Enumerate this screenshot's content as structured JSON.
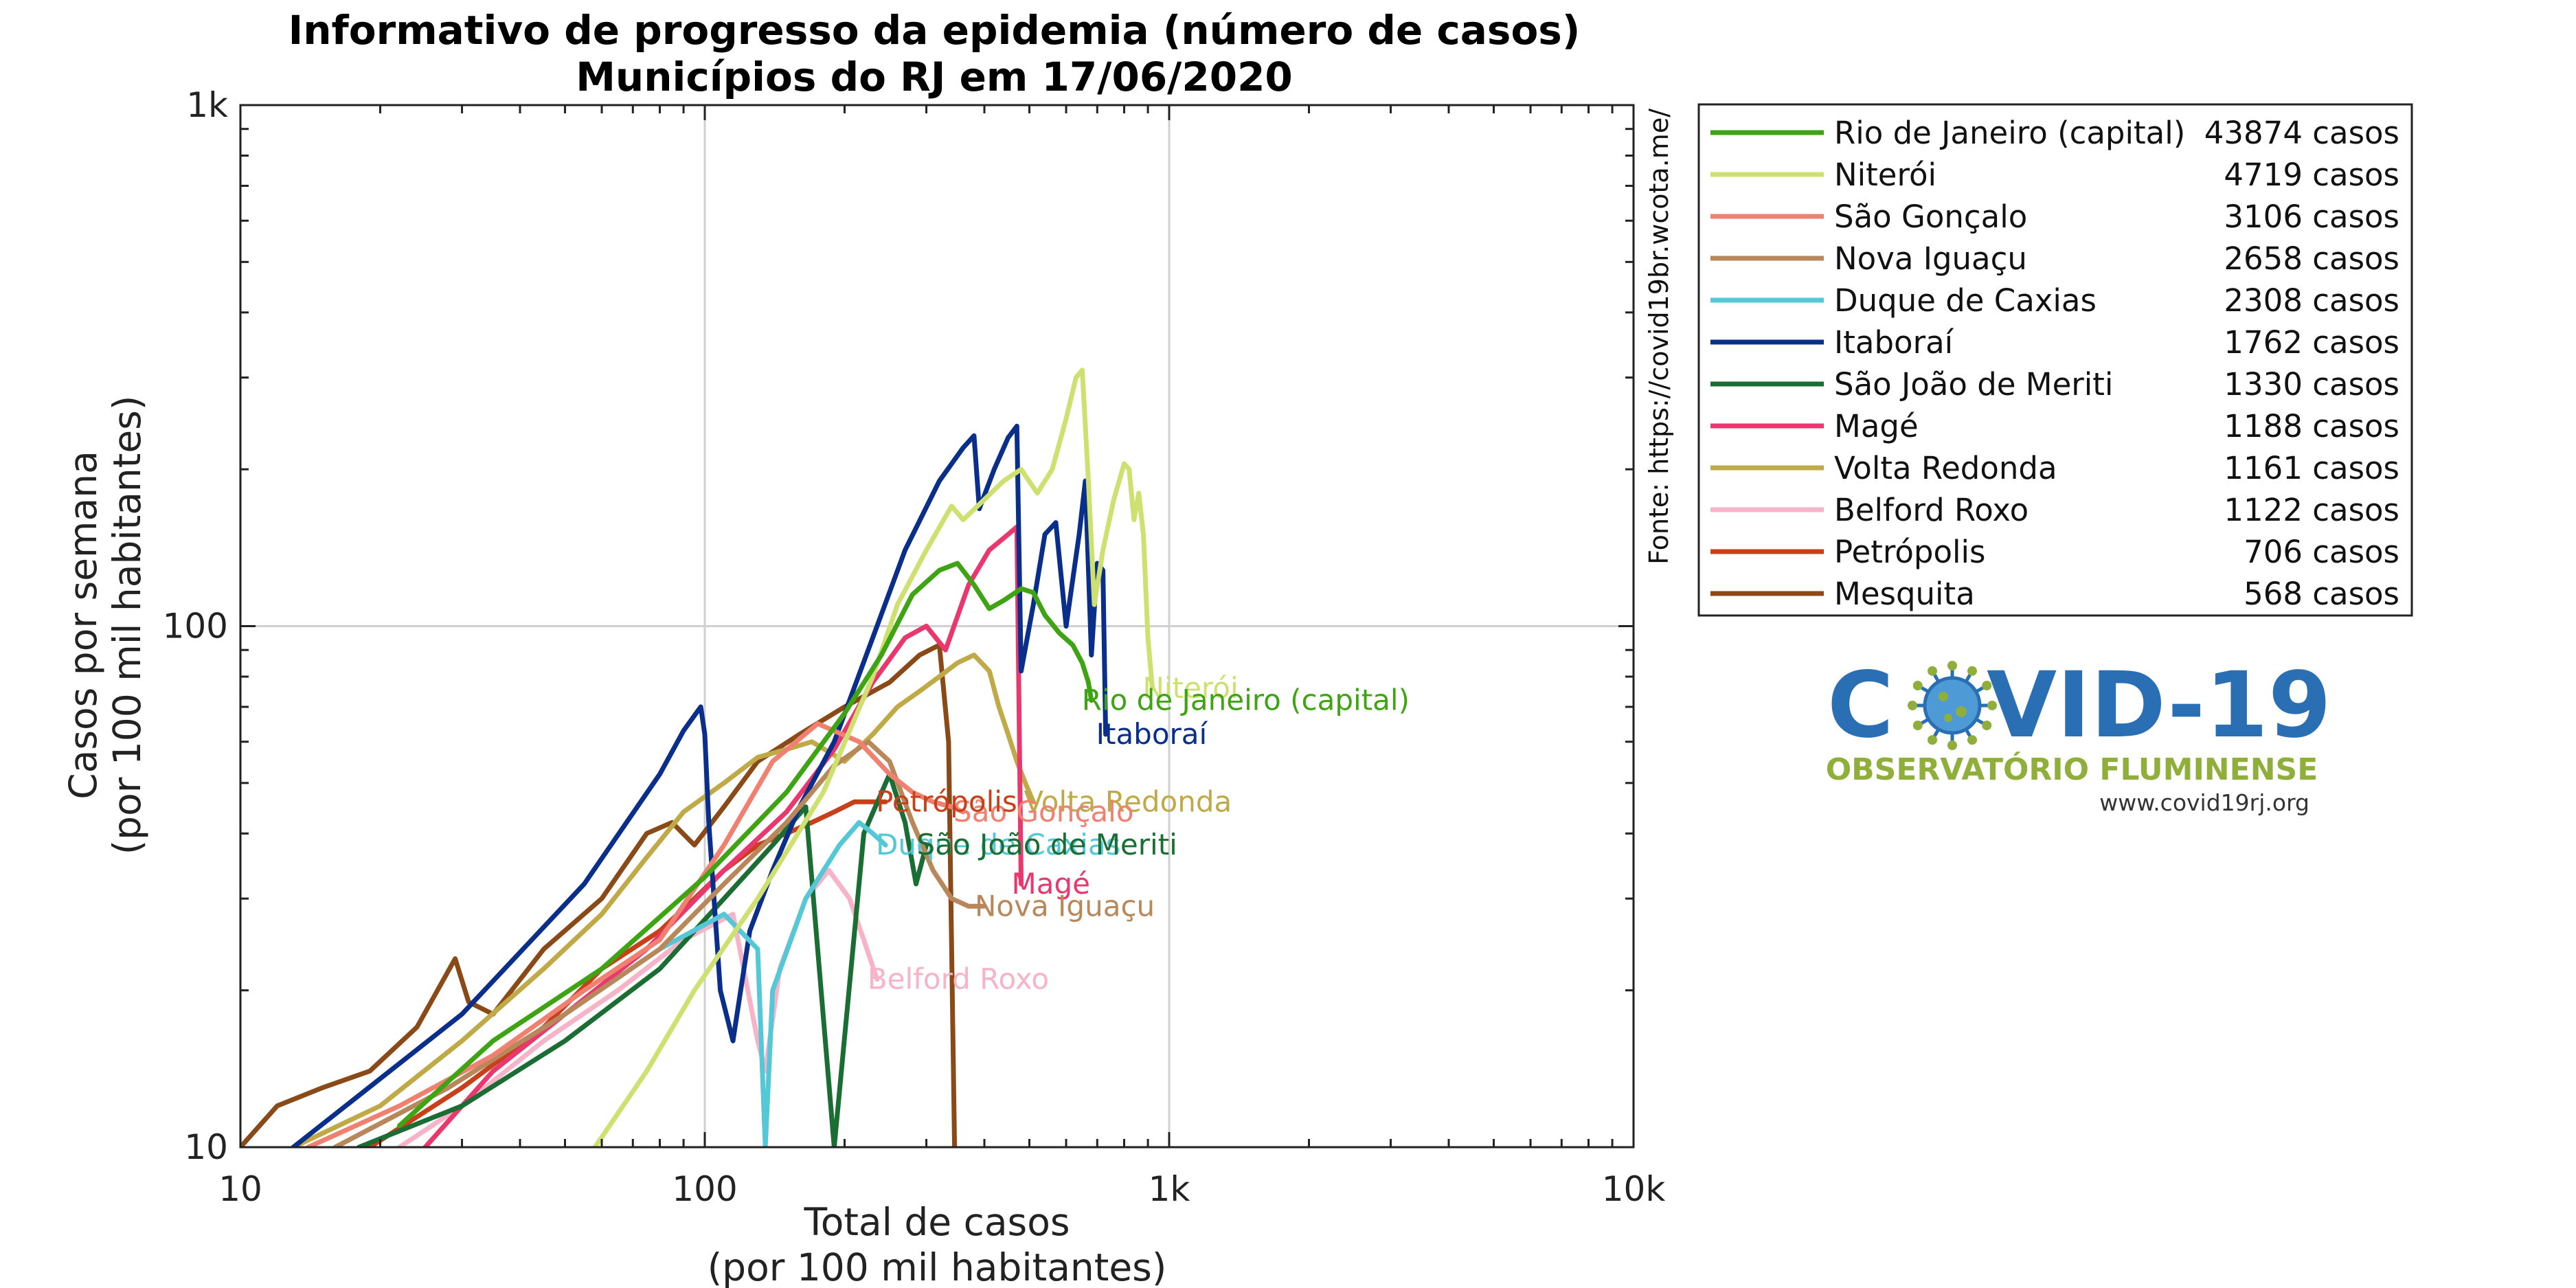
{
  "chart_data": {
    "type": "line",
    "title": "Informativo de progresso da epidemia (número de casos)",
    "subtitle": "Municípios do RJ em 17/06/2020",
    "xlabel": "Total de casos",
    "xlabel_sub": "(por 100 mil habitantes)",
    "ylabel": "Casos por semana",
    "ylabel_sub": "(por 100 mil habitantes)",
    "x_scale": "log",
    "y_scale": "log",
    "xlim": [
      10,
      10000
    ],
    "ylim": [
      10,
      1000
    ],
    "x_ticks": [
      {
        "v": 10,
        "label": "10"
      },
      {
        "v": 100,
        "label": "100"
      },
      {
        "v": 1000,
        "label": "1k"
      },
      {
        "v": 10000,
        "label": "10k"
      }
    ],
    "y_ticks": [
      {
        "v": 10,
        "label": "10"
      },
      {
        "v": 100,
        "label": "100"
      },
      {
        "v": 1000,
        "label": "1k"
      }
    ],
    "grid": true,
    "legend_position": "right",
    "source_note": "Fonte: https://covid19br.wcota.me/",
    "series": [
      {
        "name": "Rio de Janeiro (capital)",
        "legend_value": "43874 casos",
        "color": "#3fa413",
        "points": [
          [
            22,
            11
          ],
          [
            35,
            16
          ],
          [
            60,
            22
          ],
          [
            100,
            33
          ],
          [
            150,
            48
          ],
          [
            200,
            68
          ],
          [
            240,
            88
          ],
          [
            280,
            115
          ],
          [
            320,
            128
          ],
          [
            350,
            132
          ],
          [
            380,
            120
          ],
          [
            410,
            108
          ],
          [
            440,
            112
          ],
          [
            480,
            118
          ],
          [
            510,
            116
          ],
          [
            540,
            105
          ],
          [
            580,
            97
          ],
          [
            620,
            92
          ],
          [
            650,
            85
          ],
          [
            670,
            78
          ],
          [
            680,
            72
          ]
        ]
      },
      {
        "name": "Niterói",
        "legend_value": "4719 casos",
        "color": "#cee070",
        "points": [
          [
            58,
            10
          ],
          [
            75,
            14
          ],
          [
            95,
            20
          ],
          [
            130,
            30
          ],
          [
            180,
            48
          ],
          [
            230,
            80
          ],
          [
            260,
            110
          ],
          [
            300,
            140
          ],
          [
            340,
            170
          ],
          [
            360,
            160
          ],
          [
            400,
            175
          ],
          [
            440,
            190
          ],
          [
            480,
            200
          ],
          [
            520,
            180
          ],
          [
            560,
            200
          ],
          [
            600,
            250
          ],
          [
            630,
            300
          ],
          [
            650,
            310
          ],
          [
            670,
            190
          ],
          [
            690,
            110
          ],
          [
            720,
            140
          ],
          [
            760,
            175
          ],
          [
            800,
            205
          ],
          [
            820,
            200
          ],
          [
            840,
            160
          ],
          [
            860,
            180
          ],
          [
            880,
            150
          ],
          [
            900,
            95
          ],
          [
            920,
            76
          ]
        ]
      },
      {
        "name": "São Gonçalo",
        "legend_value": "3106 casos",
        "color": "#f08070",
        "points": [
          [
            14,
            10
          ],
          [
            22,
            12
          ],
          [
            35,
            15
          ],
          [
            55,
            20
          ],
          [
            80,
            25
          ],
          [
            110,
            38
          ],
          [
            140,
            55
          ],
          [
            175,
            65
          ],
          [
            215,
            60
          ],
          [
            250,
            52
          ],
          [
            280,
            48
          ],
          [
            310,
            46
          ],
          [
            340,
            45
          ],
          [
            360,
            44
          ]
        ]
      },
      {
        "name": "Nova Iguaçu",
        "legend_value": "2658 casos",
        "color": "#b8885a",
        "points": [
          [
            16,
            10
          ],
          [
            28,
            13
          ],
          [
            50,
            18
          ],
          [
            80,
            24
          ],
          [
            110,
            32
          ],
          [
            150,
            42
          ],
          [
            190,
            54
          ],
          [
            225,
            60
          ],
          [
            250,
            55
          ],
          [
            280,
            42
          ],
          [
            310,
            34
          ],
          [
            340,
            30
          ],
          [
            370,
            29
          ],
          [
            400,
            29
          ]
        ]
      },
      {
        "name": "Duque de Caxias",
        "legend_value": "2308 casos",
        "color": "#55c8d8",
        "points": [
          [
            16,
            10
          ],
          [
            28,
            13
          ],
          [
            50,
            18
          ],
          [
            80,
            24
          ],
          [
            110,
            28
          ],
          [
            130,
            24
          ],
          [
            135,
            10
          ],
          [
            140,
            20
          ],
          [
            165,
            30
          ],
          [
            195,
            38
          ],
          [
            215,
            42
          ],
          [
            230,
            40
          ],
          [
            245,
            38
          ]
        ]
      },
      {
        "name": "Itaboraí",
        "legend_value": "1762 casos",
        "color": "#0a2f8a",
        "points": [
          [
            13,
            10
          ],
          [
            30,
            18
          ],
          [
            55,
            32
          ],
          [
            80,
            52
          ],
          [
            90,
            63
          ],
          [
            98,
            70
          ],
          [
            100,
            62
          ],
          [
            102,
            42
          ],
          [
            108,
            20
          ],
          [
            115,
            16
          ],
          [
            125,
            26
          ],
          [
            140,
            34
          ],
          [
            160,
            45
          ],
          [
            190,
            60
          ],
          [
            230,
            95
          ],
          [
            270,
            140
          ],
          [
            320,
            190
          ],
          [
            360,
            220
          ],
          [
            380,
            232
          ],
          [
            390,
            168
          ],
          [
            420,
            200
          ],
          [
            450,
            230
          ],
          [
            470,
            242
          ],
          [
            480,
            82
          ],
          [
            510,
            110
          ],
          [
            540,
            150
          ],
          [
            570,
            158
          ],
          [
            600,
            100
          ],
          [
            640,
            150
          ],
          [
            660,
            190
          ],
          [
            680,
            88
          ],
          [
            700,
            132
          ],
          [
            720,
            128
          ],
          [
            730,
            62
          ]
        ]
      },
      {
        "name": "São João de Meriti",
        "legend_value": "1330 casos",
        "color": "#1b6e33",
        "points": [
          [
            18,
            10
          ],
          [
            30,
            12
          ],
          [
            50,
            16
          ],
          [
            80,
            22
          ],
          [
            110,
            30
          ],
          [
            140,
            38
          ],
          [
            165,
            45
          ],
          [
            190,
            10
          ],
          [
            220,
            40
          ],
          [
            250,
            52
          ],
          [
            270,
            42
          ],
          [
            285,
            32
          ],
          [
            300,
            38
          ]
        ]
      },
      {
        "name": "Magé",
        "legend_value": "1188 casos",
        "color": "#e8386e",
        "points": [
          [
            25,
            10
          ],
          [
            35,
            14
          ],
          [
            50,
            18
          ],
          [
            75,
            24
          ],
          [
            110,
            34
          ],
          [
            150,
            44
          ],
          [
            190,
            58
          ],
          [
            230,
            78
          ],
          [
            270,
            95
          ],
          [
            300,
            100
          ],
          [
            330,
            90
          ],
          [
            370,
            120
          ],
          [
            410,
            140
          ],
          [
            450,
            150
          ],
          [
            470,
            155
          ],
          [
            480,
            32
          ]
        ]
      },
      {
        "name": "Volta Redonda",
        "legend_value": "1161 casos",
        "color": "#c0aa48",
        "points": [
          [
            13,
            10
          ],
          [
            20,
            12
          ],
          [
            30,
            16
          ],
          [
            45,
            22
          ],
          [
            60,
            28
          ],
          [
            75,
            36
          ],
          [
            90,
            44
          ],
          [
            110,
            50
          ],
          [
            130,
            56
          ],
          [
            150,
            58
          ],
          [
            170,
            60
          ],
          [
            200,
            55
          ],
          [
            230,
            62
          ],
          [
            260,
            70
          ],
          [
            290,
            75
          ],
          [
            320,
            80
          ],
          [
            350,
            85
          ],
          [
            380,
            88
          ],
          [
            410,
            82
          ],
          [
            430,
            70
          ],
          [
            450,
            62
          ],
          [
            470,
            55
          ],
          [
            490,
            50
          ],
          [
            510,
            46
          ]
        ]
      },
      {
        "name": "Belford Roxo",
        "legend_value": "1122 casos",
        "color": "#f7b3c8",
        "points": [
          [
            22,
            10
          ],
          [
            30,
            12
          ],
          [
            45,
            16
          ],
          [
            65,
            20
          ],
          [
            90,
            25
          ],
          [
            115,
            28
          ],
          [
            130,
            16
          ],
          [
            135,
            14
          ],
          [
            145,
            22
          ],
          [
            165,
            30
          ],
          [
            185,
            34
          ],
          [
            205,
            30
          ],
          [
            220,
            25
          ],
          [
            235,
            21
          ]
        ]
      },
      {
        "name": "Petrópolis",
        "legend_value": "706 casos",
        "color": "#c8401a",
        "points": [
          [
            19,
            10
          ],
          [
            30,
            13
          ],
          [
            45,
            17
          ],
          [
            60,
            22
          ],
          [
            80,
            26
          ],
          [
            95,
            30
          ],
          [
            110,
            34
          ],
          [
            130,
            38
          ],
          [
            150,
            40
          ],
          [
            170,
            42
          ],
          [
            190,
            44
          ],
          [
            210,
            46
          ],
          [
            230,
            46
          ],
          [
            245,
            46
          ]
        ]
      },
      {
        "name": "Mesquita",
        "legend_value": "568 casos",
        "color": "#8a4a18",
        "points": [
          [
            10,
            10
          ],
          [
            12,
            12
          ],
          [
            15,
            13
          ],
          [
            19,
            14
          ],
          [
            24,
            17
          ],
          [
            29,
            23
          ],
          [
            31,
            19
          ],
          [
            35,
            18
          ],
          [
            45,
            24
          ],
          [
            60,
            30
          ],
          [
            75,
            40
          ],
          [
            85,
            42
          ],
          [
            95,
            38
          ],
          [
            110,
            45
          ],
          [
            130,
            55
          ],
          [
            160,
            62
          ],
          [
            200,
            70
          ],
          [
            250,
            78
          ],
          [
            290,
            88
          ],
          [
            320,
            92
          ],
          [
            335,
            60
          ],
          [
            345,
            10
          ]
        ]
      }
    ],
    "end_labels": [
      {
        "series": "Niterói",
        "text": "Niterói"
      },
      {
        "series": "Rio de Janeiro (capital)",
        "text": "Rio de Janeiro (capital)"
      },
      {
        "series": "Itaboraí",
        "text": "Itaboraí"
      },
      {
        "series": "Volta Redonda",
        "text": "Volta Redonda"
      },
      {
        "series": "São Gonçalo",
        "text": "São Gonçalo"
      },
      {
        "series": "Petrópolis",
        "text": "Petrópolis"
      },
      {
        "series": "Duque de Caxias",
        "text": "Duque de Caxias"
      },
      {
        "series": "Magé",
        "text": "Magé"
      },
      {
        "series": "São João de Meriti",
        "text": "São João de Meriti"
      },
      {
        "series": "Nova Iguaçu",
        "text": "Nova Iguaçu"
      },
      {
        "series": "Belford Roxo",
        "text": "Belford Roxo"
      }
    ]
  },
  "logo": {
    "text_main_left": "C",
    "text_main_right": "VID-19",
    "subtitle": "OBSERVATÓRIO FLUMINENSE",
    "url": "www.covid19rj.org"
  }
}
